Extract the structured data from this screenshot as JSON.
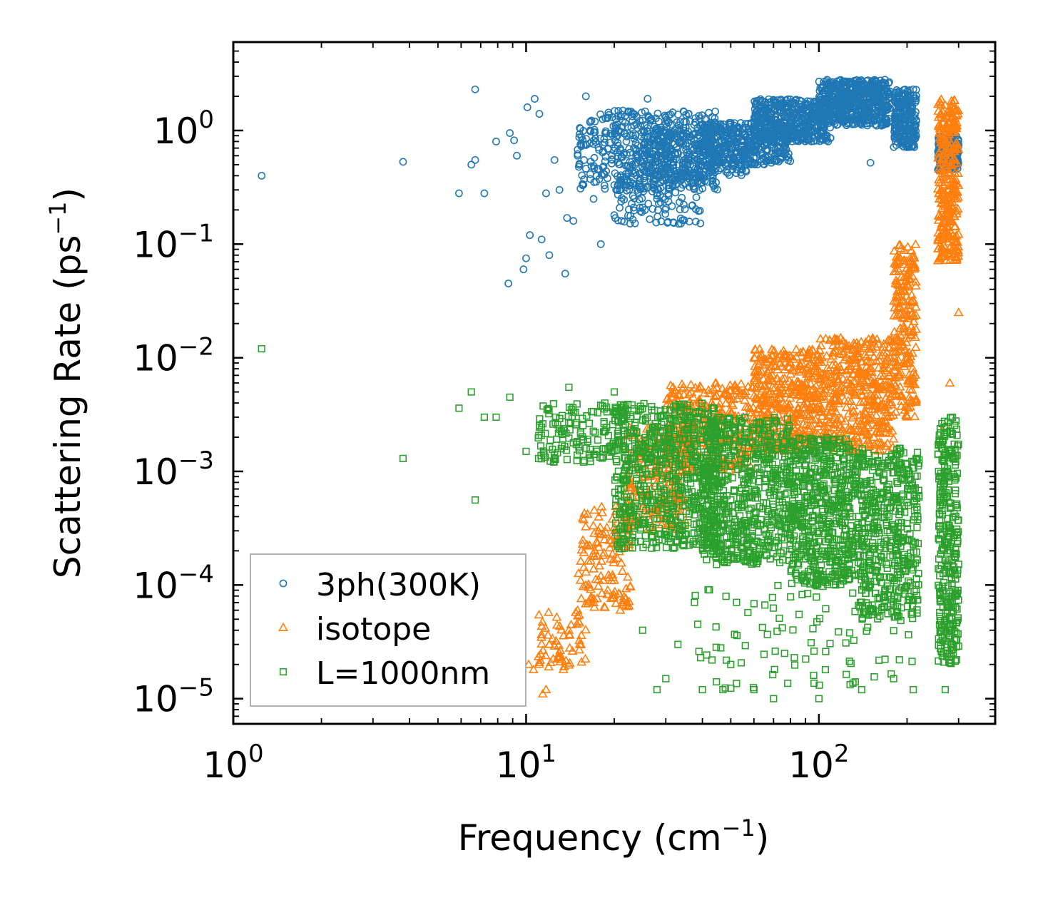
{
  "chart_data": {
    "type": "scatter",
    "title": "",
    "xlabel": "Frequency (cm",
    "xlabel_sup": "−1",
    "xlabel_suffix": ")",
    "ylabel": "Scattering Rate (ps",
    "ylabel_sup": "−1",
    "ylabel_suffix": ")",
    "xscale": "log",
    "yscale": "log",
    "xlim": [
      1,
      400
    ],
    "ylim": [
      6e-06,
      6
    ],
    "x_ticks": [
      {
        "value": 1,
        "base": "10",
        "exp": "0"
      },
      {
        "value": 10,
        "base": "10",
        "exp": "1"
      },
      {
        "value": 100,
        "base": "10",
        "exp": "2"
      }
    ],
    "y_ticks": [
      {
        "value": 1,
        "base": "10",
        "exp": "0"
      },
      {
        "value": 0.1,
        "base": "10",
        "exp": "−1"
      },
      {
        "value": 0.01,
        "base": "10",
        "exp": "−2"
      },
      {
        "value": 0.001,
        "base": "10",
        "exp": "−3"
      },
      {
        "value": 0.0001,
        "base": "10",
        "exp": "−4"
      },
      {
        "value": 1e-05,
        "base": "10",
        "exp": "−5"
      }
    ],
    "legend_position": "lower-left",
    "series": [
      {
        "name": "3ph(300K)",
        "marker": "circle",
        "color": "#1f77b4",
        "points": [
          [
            1.25,
            0.4
          ],
          [
            3.8,
            0.53
          ],
          [
            5.9,
            0.28
          ],
          [
            6.5,
            0.5
          ],
          [
            6.7,
            2.3
          ],
          [
            6.7,
            0.55
          ],
          [
            7.2,
            0.28
          ],
          [
            7.9,
            0.8
          ],
          [
            8.7,
            0.045
          ],
          [
            8.8,
            0.95
          ],
          [
            9.1,
            0.82
          ],
          [
            9.3,
            0.6
          ],
          [
            9.8,
            0.06
          ],
          [
            10.0,
            0.075
          ],
          [
            10.1,
            1.6
          ],
          [
            10.3,
            0.12
          ],
          [
            10.7,
            1.9
          ],
          [
            11.1,
            1.4
          ],
          [
            11.3,
            0.11
          ],
          [
            11.7,
            0.28
          ],
          [
            12.0,
            0.08
          ],
          [
            12.5,
            0.55
          ],
          [
            13.0,
            0.3
          ],
          [
            13.6,
            0.055
          ],
          [
            13.8,
            0.17
          ],
          [
            14.5,
            0.16
          ],
          [
            15.0,
            0.6
          ],
          [
            16.0,
            2.0
          ],
          [
            17.0,
            0.25
          ],
          [
            18.0,
            0.1
          ],
          [
            19.0,
            1.3
          ],
          [
            20.0,
            0.18
          ],
          [
            21.0,
            0.35
          ],
          [
            22.0,
            0.8
          ],
          [
            24.0,
            0.3
          ],
          [
            26.0,
            1.9
          ],
          [
            28.0,
            0.4
          ],
          [
            30.0,
            1.3
          ],
          [
            37.0,
            0.22
          ],
          [
            40.0,
            0.5
          ],
          [
            150.0,
            0.52
          ],
          [
            195.0,
            0.8
          ],
          [
            210.0,
            2.3
          ],
          [
            255.0,
            0.45
          ],
          [
            300.0,
            0.65
          ]
        ],
        "bands": [
          {
            "x": [
              15,
              45
            ],
            "y": [
              0.3,
              1.5
            ],
            "n": 500
          },
          {
            "x": [
              20,
              40
            ],
            "y": [
              0.15,
              0.5
            ],
            "n": 120
          },
          {
            "x": [
              25,
              60
            ],
            "y": [
              0.4,
              1.0
            ],
            "n": 300
          },
          {
            "x": [
              40,
              80
            ],
            "y": [
              0.5,
              1.2
            ],
            "n": 350
          },
          {
            "x": [
              60,
              110
            ],
            "y": [
              0.8,
              1.9
            ],
            "n": 450
          },
          {
            "x": [
              100,
              175
            ],
            "y": [
              1.1,
              2.8
            ],
            "n": 550
          },
          {
            "x": [
              180,
              215
            ],
            "y": [
              0.7,
              2.3
            ],
            "n": 220
          },
          {
            "x": [
              255,
              300
            ],
            "y": [
              0.45,
              0.9
            ],
            "n": 220
          }
        ]
      },
      {
        "name": "isotope",
        "marker": "triangle",
        "color": "#ff7f0e",
        "points": [
          [
            10.2,
            2e-05
          ],
          [
            10.6,
            1.8e-05
          ],
          [
            11.4,
            1.1e-05
          ],
          [
            11.7,
            1.2e-05
          ],
          [
            12.0,
            3e-05
          ],
          [
            13.0,
            2.5e-05
          ],
          [
            14.0,
            4e-05
          ],
          [
            15.0,
            6e-05
          ],
          [
            16.0,
            0.0001
          ],
          [
            17.0,
            7e-05
          ],
          [
            18.0,
            0.00012
          ],
          [
            19.0,
            9e-05
          ],
          [
            20.0,
            0.00011
          ],
          [
            21.0,
            0.00025
          ],
          [
            22.0,
            0.0004
          ],
          [
            300.0,
            0.025
          ],
          [
            280.0,
            0.006
          ],
          [
            270.0,
            0.0025
          ]
        ],
        "bands": [
          {
            "x": [
              11,
              16
            ],
            "y": [
              1.8e-05,
              6e-05
            ],
            "n": 60
          },
          {
            "x": [
              15,
              23
            ],
            "y": [
              6e-05,
              0.0005
            ],
            "n": 140
          },
          {
            "x": [
              22,
              35
            ],
            "y": [
              0.0003,
              0.0025
            ],
            "n": 200
          },
          {
            "x": [
              30,
              60
            ],
            "y": [
              0.001,
              0.006
            ],
            "n": 350
          },
          {
            "x": [
              60,
              100
            ],
            "y": [
              0.0015,
              0.012
            ],
            "n": 420
          },
          {
            "x": [
              100,
              180
            ],
            "y": [
              0.0015,
              0.015
            ],
            "n": 450
          },
          {
            "x": [
              180,
              215
            ],
            "y": [
              0.003,
              0.1
            ],
            "n": 220
          },
          {
            "x": [
              255,
              300
            ],
            "y": [
              0.07,
              1.9
            ],
            "n": 320
          }
        ]
      },
      {
        "name": "L=1000nm",
        "marker": "square",
        "color": "#2ca02c",
        "points": [
          [
            1.25,
            0.012
          ],
          [
            3.8,
            0.0013
          ],
          [
            5.9,
            0.0036
          ],
          [
            6.5,
            0.005
          ],
          [
            6.7,
            0.00056
          ],
          [
            7.2,
            0.003
          ],
          [
            7.9,
            0.003
          ],
          [
            8.8,
            0.0045
          ],
          [
            10.0,
            0.0015
          ],
          [
            12.5,
            0.0014
          ],
          [
            14.0,
            0.0055
          ],
          [
            20.0,
            0.005
          ],
          [
            25.0,
            4e-05
          ],
          [
            28.0,
            1.2e-05
          ],
          [
            30.0,
            1.5e-05
          ],
          [
            33.0,
            3e-05
          ],
          [
            40.0,
            1.2e-05
          ],
          [
            47.0,
            1.2e-05
          ],
          [
            50.0,
            2e-05
          ],
          [
            60.0,
            1.2e-05
          ],
          [
            70.0,
            1e-05
          ],
          [
            100.0,
            1e-05
          ],
          [
            140.0,
            1.2e-05
          ],
          [
            180.0,
            1.5e-05
          ],
          [
            210.0,
            1.2e-05
          ],
          [
            270.0,
            1.2e-05
          ],
          [
            295.0,
            2.2e-05
          ]
        ],
        "bands": [
          {
            "x": [
              11,
              22
            ],
            "y": [
              0.0012,
              0.004
            ],
            "n": 160
          },
          {
            "x": [
              20,
              45
            ],
            "y": [
              0.0002,
              0.004
            ],
            "n": 650
          },
          {
            "x": [
              40,
              80
            ],
            "y": [
              0.00015,
              0.003
            ],
            "n": 650
          },
          {
            "x": [
              80,
              130
            ],
            "y": [
              0.0001,
              0.002
            ],
            "n": 550
          },
          {
            "x": [
              130,
              220
            ],
            "y": [
              5e-05,
              0.0016
            ],
            "n": 520
          },
          {
            "x": [
              35,
              220
            ],
            "y": [
              1.2e-05,
              0.0001
            ],
            "n": 90
          },
          {
            "x": [
              255,
              300
            ],
            "y": [
              2e-05,
              0.003
            ],
            "n": 320
          }
        ]
      }
    ]
  }
}
